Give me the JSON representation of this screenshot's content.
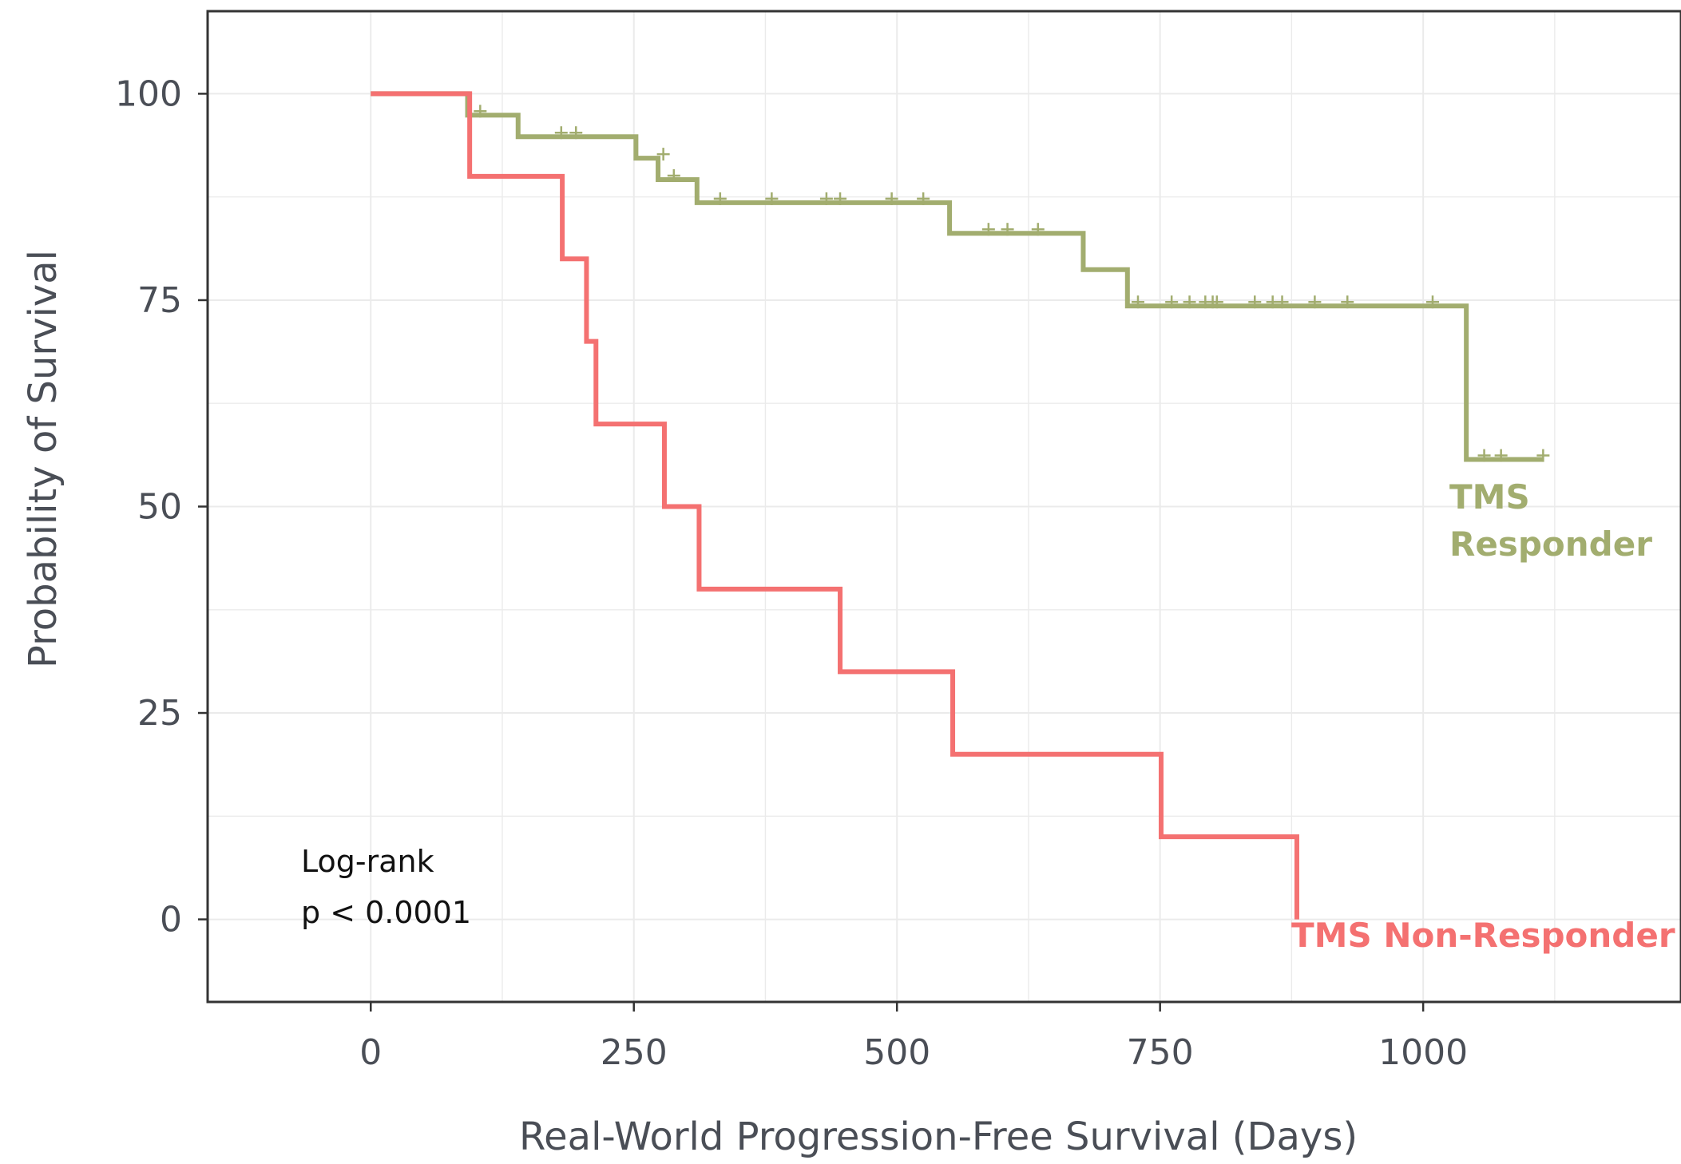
{
  "chart_data": {
    "type": "line",
    "subtype": "kaplan-meier step curve",
    "xlabel": "Real-World Progression-Free Survival (Days)",
    "ylabel": "Probability of Survival",
    "xlim": [
      -155,
      1245
    ],
    "ylim": [
      -10,
      110
    ],
    "x_ticks": [
      0,
      250,
      500,
      750,
      1000
    ],
    "x_tick_labels": [
      "0",
      "250",
      "500",
      "750",
      "1000"
    ],
    "y_ticks": [
      0,
      25,
      50,
      75,
      100
    ],
    "y_tick_labels": [
      "0",
      "25",
      "50",
      "75",
      "100"
    ],
    "grid": true,
    "legend": "none",
    "annotation": {
      "lines": [
        "Log-rank",
        "p < 0.0001"
      ]
    },
    "series": [
      {
        "name": "TMS Responder",
        "label_lines": [
          "TMS",
          "Responder"
        ],
        "color": "#a2ad6f",
        "steps": [
          [
            0,
            100
          ],
          [
            92,
            97.4
          ],
          [
            140,
            94.8
          ],
          [
            252,
            92.2
          ],
          [
            273,
            89.6
          ],
          [
            310,
            86.8
          ],
          [
            550,
            83.1
          ],
          [
            677,
            78.7
          ],
          [
            719,
            74.3
          ],
          [
            1041,
            55.7
          ],
          [
            1114,
            55.7
          ]
        ],
        "censored": [
          [
            104,
            97.4
          ],
          [
            181,
            94.8
          ],
          [
            195,
            94.8
          ],
          [
            278,
            92.2
          ],
          [
            288,
            89.6
          ],
          [
            332,
            86.8
          ],
          [
            381,
            86.8
          ],
          [
            433,
            86.8
          ],
          [
            446,
            86.8
          ],
          [
            495,
            86.8
          ],
          [
            525,
            86.8
          ],
          [
            587,
            83.1
          ],
          [
            605,
            83.1
          ],
          [
            634,
            83.1
          ],
          [
            729,
            74.3
          ],
          [
            761,
            74.3
          ],
          [
            778,
            74.3
          ],
          [
            793,
            74.3
          ],
          [
            800,
            74.3
          ],
          [
            804,
            74.3
          ],
          [
            840,
            74.3
          ],
          [
            857,
            74.3
          ],
          [
            866,
            74.3
          ],
          [
            897,
            74.3
          ],
          [
            928,
            74.3
          ],
          [
            1009,
            74.3
          ],
          [
            1058,
            55.7
          ],
          [
            1074,
            55.7
          ],
          [
            1114,
            55.7
          ]
        ]
      },
      {
        "name": "TMS Non-Responder",
        "label_lines": [
          "TMS Non-Responder"
        ],
        "color": "#f47171",
        "steps": [
          [
            0,
            100
          ],
          [
            94,
            90
          ],
          [
            182,
            80
          ],
          [
            205,
            70
          ],
          [
            214,
            60
          ],
          [
            279,
            50
          ],
          [
            312,
            40
          ],
          [
            446,
            30
          ],
          [
            553,
            20
          ],
          [
            751,
            10
          ],
          [
            880,
            0
          ]
        ],
        "censored": []
      }
    ]
  }
}
